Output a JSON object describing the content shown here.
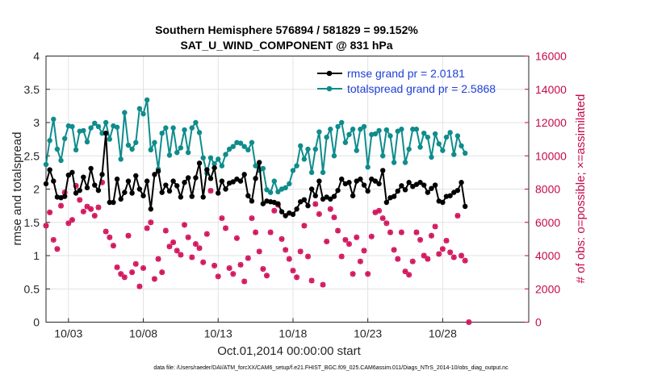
{
  "chart_data": {
    "type": "line",
    "title": "Southern Hemisphere 576894 / 581829 = 99.152%",
    "subtitle": "SAT_U_WIND_COMPONENT @ 831 hPa",
    "xlabel": "Oct.01,2014 00:00:00 start",
    "ylabel_left": "rmse and totalspread",
    "ylabel_right": "# of obs: o=possible; ×=assimilated",
    "xlim": [
      1.5,
      33.75
    ],
    "ylim_left": [
      0,
      4
    ],
    "ylim_right": [
      0,
      16000
    ],
    "x_ticks": [
      3,
      8,
      13,
      18,
      23,
      28
    ],
    "x_tick_labels": [
      "10/03",
      "10/08",
      "10/13",
      "10/18",
      "10/23",
      "10/28"
    ],
    "y_ticks_left": [
      "0",
      "0.5",
      "1",
      "1.5",
      "2",
      "2.5",
      "3",
      "3.5",
      "4"
    ],
    "y_ticks_right": [
      "0",
      "2000",
      "4000",
      "6000",
      "8000",
      "10000",
      "12000",
      "14000",
      "16000"
    ],
    "grid": true,
    "legend_position": "top-right",
    "colors": {
      "rmse": "#000000",
      "totalspread": "#0f8c8c",
      "obs": "#d1105a",
      "right_axis": "#c40a4c",
      "legend_text": "#1f3fd6"
    },
    "time_start": 1.5,
    "time_step": 0.25,
    "series": [
      {
        "name": "rmse grand pr = 2.0181",
        "axis": "left",
        "values": [
          2.08,
          2.29,
          2.12,
          1.88,
          1.87,
          1.89,
          2.21,
          2.25,
          1.94,
          1.98,
          2.18,
          2.02,
          2.31,
          2.06,
          1.98,
          2.22,
          2.84,
          1.8,
          1.8,
          2.15,
          1.85,
          1.95,
          2.12,
          1.94,
          2.2,
          2.0,
          1.9,
          2.12,
          1.7,
          2.22,
          2.27,
          1.95,
          2.06,
          1.97,
          2.12,
          2.05,
          1.88,
          2.1,
          2.17,
          1.89,
          2.17,
          2.39,
          1.88,
          2.29,
          2.16,
          2.32,
          1.94,
          2.12,
          2.0,
          2.09,
          2.11,
          2.15,
          2.12,
          2.22,
          1.9,
          1.82,
          2.16,
          2.4,
          1.78,
          1.82,
          1.81,
          1.8,
          1.78,
          1.66,
          1.6,
          1.64,
          1.62,
          1.7,
          1.81,
          1.84,
          1.75,
          2.0,
          1.9,
          2.12,
          1.85,
          1.88,
          1.85,
          1.89,
          1.98,
          2.15,
          2.08,
          2.1,
          1.9,
          2.12,
          2.15,
          2.06,
          1.97,
          2.15,
          2.12,
          2.08,
          2.28,
          1.8,
          1.87,
          1.89,
          1.97,
          2.05,
          1.99,
          2.1,
          2.04,
          2.07,
          2.1,
          2.06,
          1.95,
          2.01,
          2.06,
          1.82,
          1.8,
          1.89,
          1.9,
          1.95,
          1.98,
          2.1,
          1.74
        ],
        "stats": {
          "grand_value": "rmse grand pr = 2.0181"
        }
      },
      {
        "name": "totalspread grand pr = 2.5868",
        "axis": "left",
        "values": [
          2.37,
          2.73,
          3.05,
          2.6,
          2.43,
          2.76,
          2.95,
          2.94,
          2.59,
          2.87,
          2.88,
          2.71,
          2.92,
          2.99,
          2.94,
          2.84,
          3.0,
          2.75,
          2.95,
          2.93,
          2.45,
          3.15,
          2.66,
          2.6,
          2.7,
          3.21,
          3.13,
          3.34,
          2.59,
          2.7,
          2.3,
          2.84,
          2.92,
          2.51,
          2.92,
          2.55,
          2.62,
          2.89,
          2.55,
          2.92,
          3.0,
          2.85,
          2.47,
          2.24,
          2.47,
          2.38,
          2.45,
          2.35,
          2.52,
          2.6,
          2.64,
          2.7,
          2.69,
          2.64,
          2.59,
          2.7,
          2.35,
          2.28,
          2.31,
          1.99,
          1.95,
          2.12,
          1.96,
          2.0,
          2.02,
          2.08,
          2.28,
          2.35,
          2.65,
          2.45,
          2.6,
          2.25,
          2.6,
          2.86,
          2.25,
          2.78,
          2.9,
          2.5,
          2.94,
          3.0,
          2.7,
          2.82,
          2.9,
          2.58,
          2.9,
          2.94,
          2.33,
          2.82,
          2.83,
          2.88,
          2.5,
          2.89,
          2.8,
          2.4,
          2.87,
          2.9,
          2.4,
          2.6,
          2.9,
          2.9,
          2.63,
          2.84,
          2.78,
          2.48,
          2.83,
          2.68,
          2.58,
          2.78,
          2.85,
          2.52,
          2.8,
          2.65,
          2.54
        ],
        "stats": {
          "grand_value": "totalspread grand pr = 2.5868"
        }
      },
      {
        "name": "obs possible",
        "axis": "right",
        "marker": "o",
        "values": [
          5800,
          6600,
          4950,
          4400,
          7000,
          7800,
          5950,
          6150,
          8200,
          7350,
          6650,
          6950,
          6800,
          6400,
          6900,
          8400,
          5450,
          5100,
          4600,
          3300,
          2900,
          2700,
          5200,
          3000,
          3500,
          2150,
          3250,
          5650,
          6000,
          2600,
          3800,
          3000,
          5500,
          4550,
          4800,
          4300,
          4050,
          5850,
          5100,
          3900,
          4700,
          4450,
          3600,
          5300,
          7900,
          3400,
          2750,
          6250,
          5650,
          3250,
          2900,
          5050,
          3450,
          2450,
          3850,
          6250,
          5400,
          4250,
          3200,
          2800,
          5400,
          6700,
          7050,
          5000,
          4350,
          3800,
          3100,
          2700,
          4250,
          5800,
          3950,
          2500,
          7100,
          6500,
          2250,
          4850,
          6800,
          6300,
          5500,
          3950,
          4950,
          4700,
          2900,
          5100,
          3650,
          4300,
          2900,
          5150,
          6600,
          6700,
          6250,
          5950,
          5400,
          4350,
          3800,
          5400,
          3050,
          2850,
          3650,
          5400,
          4950,
          4000,
          3800,
          5200,
          5750,
          4100,
          4400,
          4900,
          4200,
          3900,
          6400,
          4000,
          3700,
          0
        ],
        "stats": {
          "visible_markers": "every sample"
        }
      },
      {
        "name": "obs assimilated",
        "axis": "right",
        "marker": "x",
        "values": [
          5800,
          6600,
          4950,
          4400,
          7000,
          7800,
          5950,
          6150,
          8200,
          7350,
          6650,
          6950,
          6800,
          6400,
          6900,
          8400,
          5450,
          5100,
          4600,
          3300,
          2900,
          2700,
          5200,
          3000,
          3500,
          2150,
          3250,
          5650,
          6000,
          2600,
          3800,
          3000,
          5500,
          4550,
          4800,
          4300,
          4050,
          5850,
          5100,
          3900,
          4700,
          4450,
          3600,
          5300,
          7900,
          3400,
          2750,
          6250,
          5650,
          3250,
          2900,
          5050,
          3450,
          2450,
          3850,
          6250,
          5400,
          4250,
          3200,
          2800,
          5400,
          6700,
          7050,
          5000,
          4350,
          3800,
          3100,
          2700,
          4250,
          5800,
          3950,
          2500,
          7100,
          6500,
          2250,
          4850,
          6800,
          6300,
          5500,
          3950,
          4950,
          4700,
          2900,
          5100,
          3650,
          4300,
          2900,
          5150,
          6600,
          6700,
          6250,
          5950,
          5400,
          4350,
          3800,
          5400,
          3050,
          2850,
          3650,
          5400,
          4950,
          4000,
          3800,
          5200,
          5750,
          4100,
          4400,
          4900,
          4200,
          3900,
          6400,
          4000,
          3700,
          0
        ],
        "stats": {
          "visible_markers": "every sample"
        }
      }
    ],
    "footnote": "data file: /Users/raeder/DAI/ATM_forcXX/CAM6_setup/f.e21.FHIST_BGC.f09_025.CAM6assim.011/Diags_NTrS_2014-10/obs_diag_output.nc"
  }
}
